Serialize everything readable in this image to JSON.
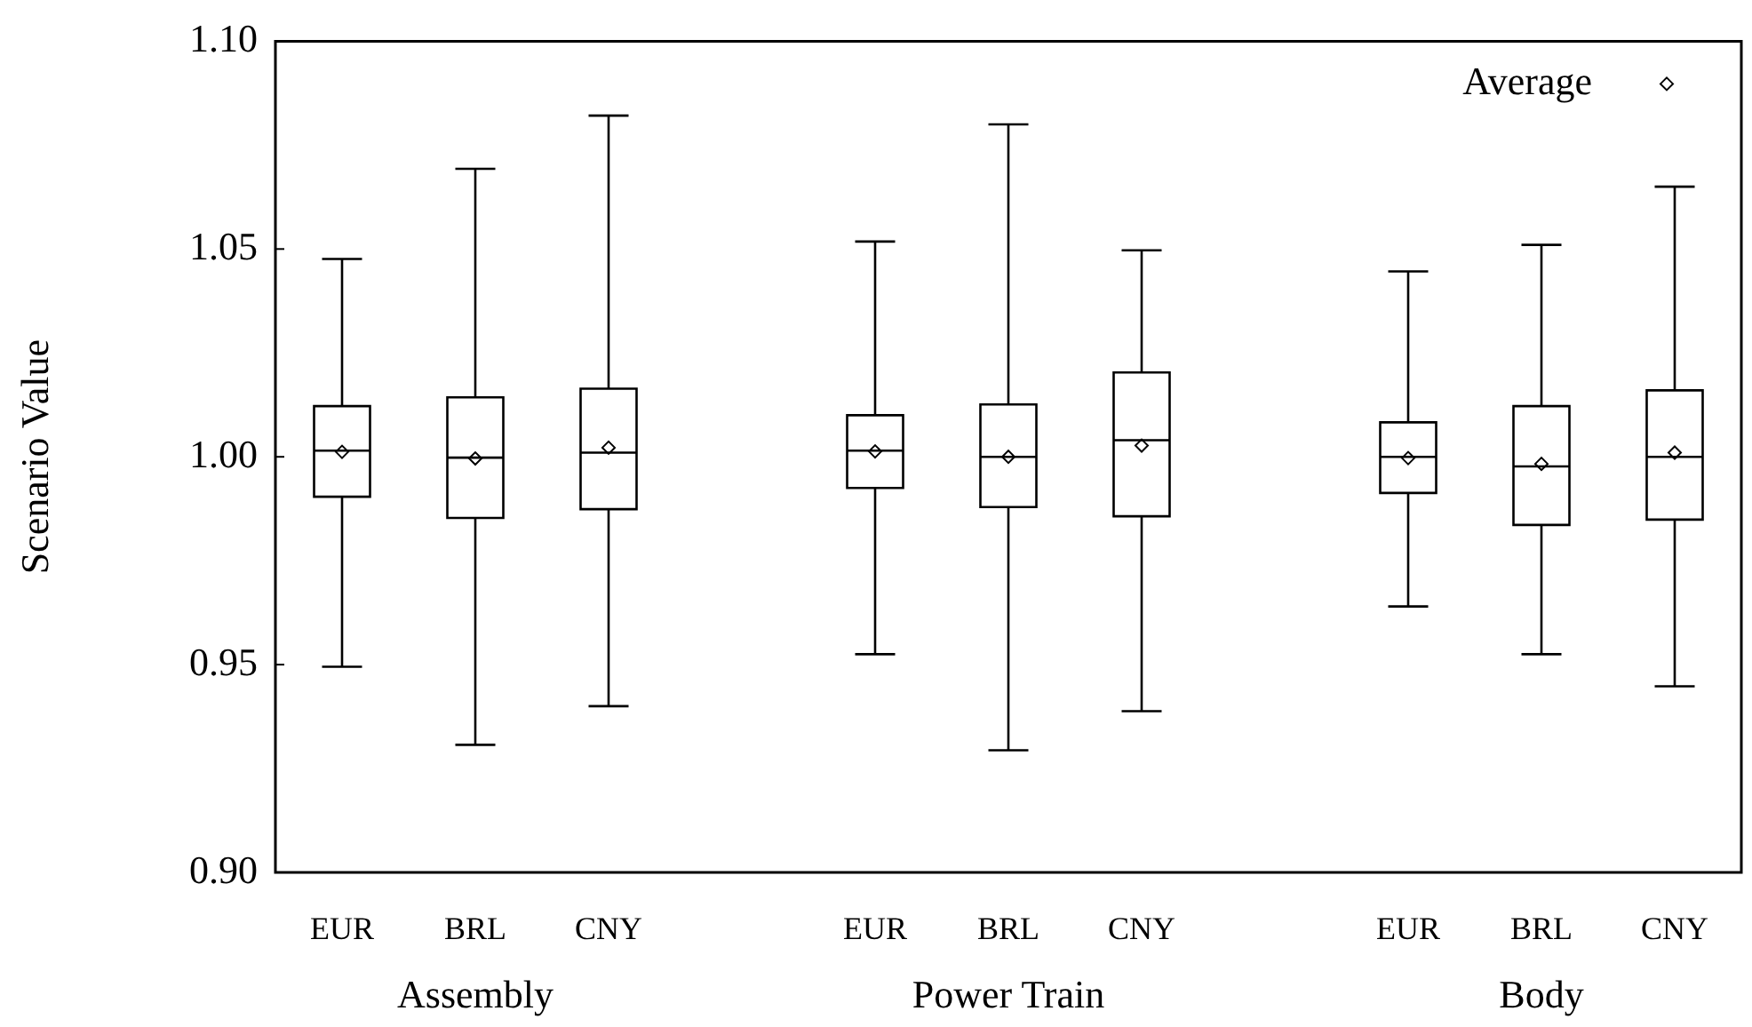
{
  "chart_data": {
    "type": "box",
    "ylabel": "Scenario Value",
    "categories": [
      "EUR",
      "BRL",
      "CNY",
      null,
      "EUR",
      "BRL",
      "CNY",
      null,
      "EUR",
      "BRL",
      "CNY"
    ],
    "annotations": [
      "Assembly",
      "Power Train",
      "Body"
    ],
    "series": [
      {
        "type": "box",
        "color": "#000000",
        "boxes": [
          {
            "low": 0.9495,
            "q1": 0.9904,
            "median": 1.0015,
            "q3": 1.0122,
            "high": 1.0476
          },
          {
            "low": 0.9307,
            "q1": 0.9853,
            "median": 0.9998,
            "q3": 1.0143,
            "high": 1.0693
          },
          {
            "low": 0.94,
            "q1": 0.9874,
            "median": 1.001,
            "q3": 1.0164,
            "high": 1.0821
          },
          null,
          {
            "low": 0.9525,
            "q1": 0.9925,
            "median": 1.0015,
            "q3": 1.01,
            "high": 1.0518
          },
          {
            "low": 0.9294,
            "q1": 0.9879,
            "median": 1.0,
            "q3": 1.0126,
            "high": 1.08
          },
          {
            "low": 0.9388,
            "q1": 0.9857,
            "median": 1.004,
            "q3": 1.0203,
            "high": 1.0497
          },
          null,
          {
            "low": 0.964,
            "q1": 0.9913,
            "median": 1.0,
            "q3": 1.0083,
            "high": 1.0446
          },
          {
            "low": 0.9525,
            "q1": 0.9836,
            "median": 0.9977,
            "q3": 1.0122,
            "high": 1.051
          },
          {
            "low": 0.9448,
            "q1": 0.9849,
            "median": 1.0,
            "q3": 1.016,
            "high": 1.065
          }
        ]
      },
      {
        "type": "scatter",
        "name": "Average",
        "color": "#000000",
        "marker": "diamond",
        "values": [
          1.0012,
          0.9996,
          1.0022,
          null,
          1.0013,
          1.0,
          1.0027,
          null,
          0.9997,
          0.9983,
          1.001
        ]
      }
    ],
    "ylim": [
      0.9,
      1.1
    ],
    "yticks": [
      {
        "value": 0.9,
        "label": "0.90"
      },
      0.95,
      {
        "value": 1.0,
        "label": "1.00"
      },
      1.05,
      {
        "value": 1.1,
        "label": "1.10"
      }
    ],
    "legend": "top right",
    "grid": false
  }
}
